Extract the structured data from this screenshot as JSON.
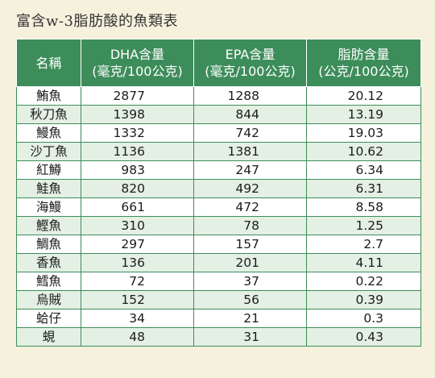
{
  "title": "富含w-3脂肪酸的魚類表",
  "headers": {
    "name": "名稱",
    "dha": [
      "DHA含量",
      "(毫克/100公克)"
    ],
    "epa": [
      "EPA含量",
      "(毫克/100公克)"
    ],
    "fat": [
      "脂肪含量",
      "(公克/100公克)"
    ]
  },
  "rows": [
    {
      "name": "鮪魚",
      "dha": "2877",
      "epa": "1288",
      "fat": "20.12"
    },
    {
      "name": "秋刀魚",
      "dha": "1398",
      "epa": "844",
      "fat": "13.19"
    },
    {
      "name": "鰻魚",
      "dha": "1332",
      "epa": "742",
      "fat": "19.03"
    },
    {
      "name": "沙丁魚",
      "dha": "1136",
      "epa": "1381",
      "fat": "10.62"
    },
    {
      "name": "紅鱒",
      "dha": "983",
      "epa": "247",
      "fat": "6.34"
    },
    {
      "name": "鮭魚",
      "dha": "820",
      "epa": "492",
      "fat": "6.31"
    },
    {
      "name": "海鰻",
      "dha": "661",
      "epa": "472",
      "fat": "8.58"
    },
    {
      "name": "鰹魚",
      "dha": "310",
      "epa": "78",
      "fat": "1.25"
    },
    {
      "name": "鯛魚",
      "dha": "297",
      "epa": "157",
      "fat": "2.7"
    },
    {
      "name": "香魚",
      "dha": "136",
      "epa": "201",
      "fat": "4.11"
    },
    {
      "name": "鱈魚",
      "dha": "72",
      "epa": "37",
      "fat": "0.22"
    },
    {
      "name": "烏賊",
      "dha": "152",
      "epa": "56",
      "fat": "0.39"
    },
    {
      "name": "蛤仔",
      "dha": "34",
      "epa": "21",
      "fat": "0.3"
    },
    {
      "name": "蜆",
      "dha": "48",
      "epa": "31",
      "fat": "0.43"
    }
  ],
  "colors": {
    "header_bg": "#3d8d5a",
    "row_alt_bg": "#e3f0e3",
    "page_bg": "#f6f1dd"
  }
}
